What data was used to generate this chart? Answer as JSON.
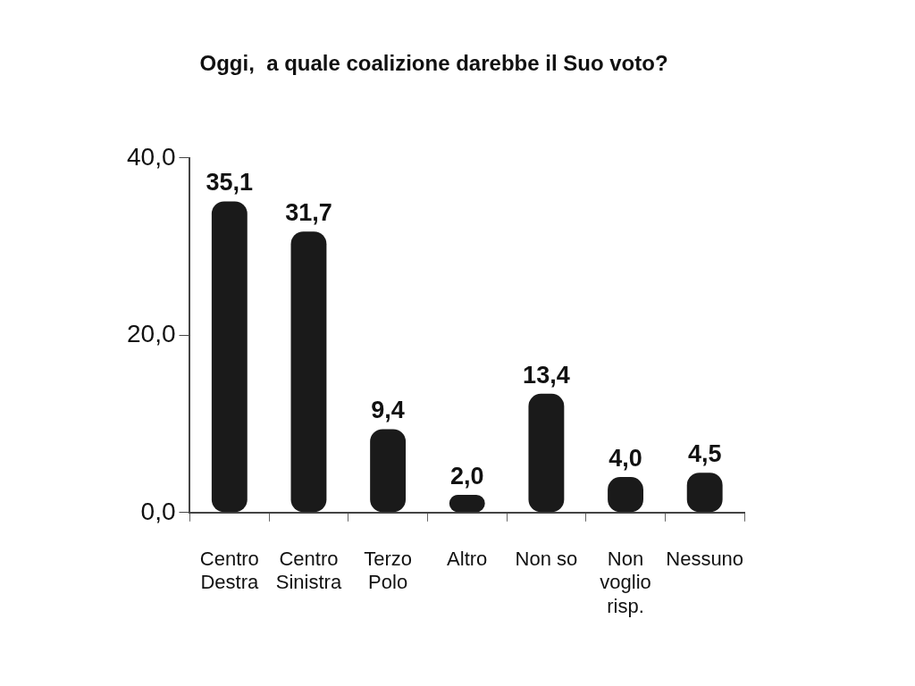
{
  "chart_data": {
    "type": "bar",
    "title": "Oggi,  a quale coalizione darebbe il Suo voto?",
    "categories": [
      "Centro\nDestra",
      "Centro\nSinistra",
      "Terzo\nPolo",
      "Altro",
      "Non so",
      "Non\nvoglio\nrisp.",
      "Nessuno"
    ],
    "values": [
      35.1,
      31.7,
      9.4,
      2.0,
      13.4,
      4.0,
      4.5
    ],
    "value_labels": [
      "35,1",
      "31,7",
      "9,4",
      "2,0",
      "13,4",
      "4,0",
      "4,5"
    ],
    "color": "#1a1a1a",
    "ylim": [
      0,
      40
    ],
    "yticks": [
      {
        "value": 0,
        "label": "0,0"
      },
      {
        "value": 20,
        "label": "20,0"
      },
      {
        "value": 40,
        "label": "40,0"
      }
    ],
    "grid": false,
    "legend": false
  }
}
